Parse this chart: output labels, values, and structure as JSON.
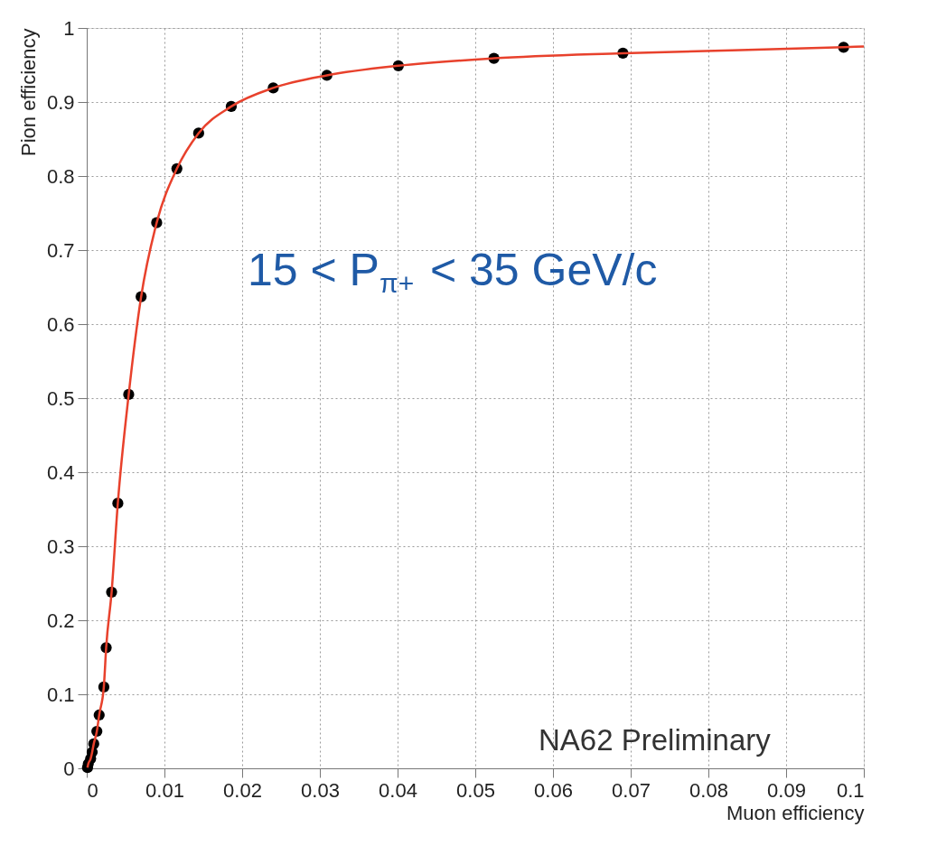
{
  "chart_data": {
    "type": "scatter",
    "xlabel": "Muon efficiency",
    "ylabel": "Pion efficiency",
    "xlim": [
      0,
      0.1
    ],
    "ylim": [
      0,
      1
    ],
    "xticks": [
      0,
      0.01,
      0.02,
      0.03,
      0.04,
      0.05,
      0.06,
      0.07,
      0.08,
      0.09,
      0.1
    ],
    "yticks": [
      0,
      0.1,
      0.2,
      0.3,
      0.4,
      0.5,
      0.6,
      0.7,
      0.8,
      0.9,
      1
    ],
    "grid": true,
    "annotations": [
      "15 < P$_{π+}$ < 35 GeV/c",
      "NA62 Preliminary"
    ],
    "series": [
      {
        "type": "line",
        "color": "#e8412c",
        "line_style": "solid",
        "marker": "none",
        "x": [
          0.0001,
          0.0002,
          0.0005,
          0.0007,
          0.0009,
          0.0013,
          0.0016,
          0.0022,
          0.0025,
          0.0032,
          0.004,
          0.0054,
          0.007,
          0.009,
          0.0116,
          0.0144,
          0.0186,
          0.024,
          0.0309,
          0.0401,
          0.0524,
          0.069,
          0.0974,
          0.1
        ],
        "values": [
          0.001,
          0.006,
          0.013,
          0.022,
          0.033,
          0.05,
          0.072,
          0.11,
          0.163,
          0.238,
          0.358,
          0.505,
          0.637,
          0.737,
          0.81,
          0.858,
          0.894,
          0.919,
          0.936,
          0.949,
          0.959,
          0.966,
          0.974,
          0.975
        ]
      },
      {
        "color": "#000000",
        "marker": "circle",
        "x": [
          0.0001,
          0.0002,
          0.0005,
          0.0007,
          0.0009,
          0.0013,
          0.0016,
          0.0022,
          0.0025,
          0.0032,
          0.004,
          0.0054,
          0.007,
          0.009,
          0.0116,
          0.0144,
          0.0186,
          0.024,
          0.0309,
          0.0401,
          0.0524,
          0.069,
          0.0974
        ],
        "values": [
          0.001,
          0.006,
          0.013,
          0.022,
          0.033,
          0.05,
          0.072,
          0.11,
          0.163,
          0.238,
          0.358,
          0.505,
          0.637,
          0.737,
          0.81,
          0.858,
          0.894,
          0.919,
          0.936,
          0.949,
          0.959,
          0.966,
          0.974
        ]
      }
    ]
  }
}
